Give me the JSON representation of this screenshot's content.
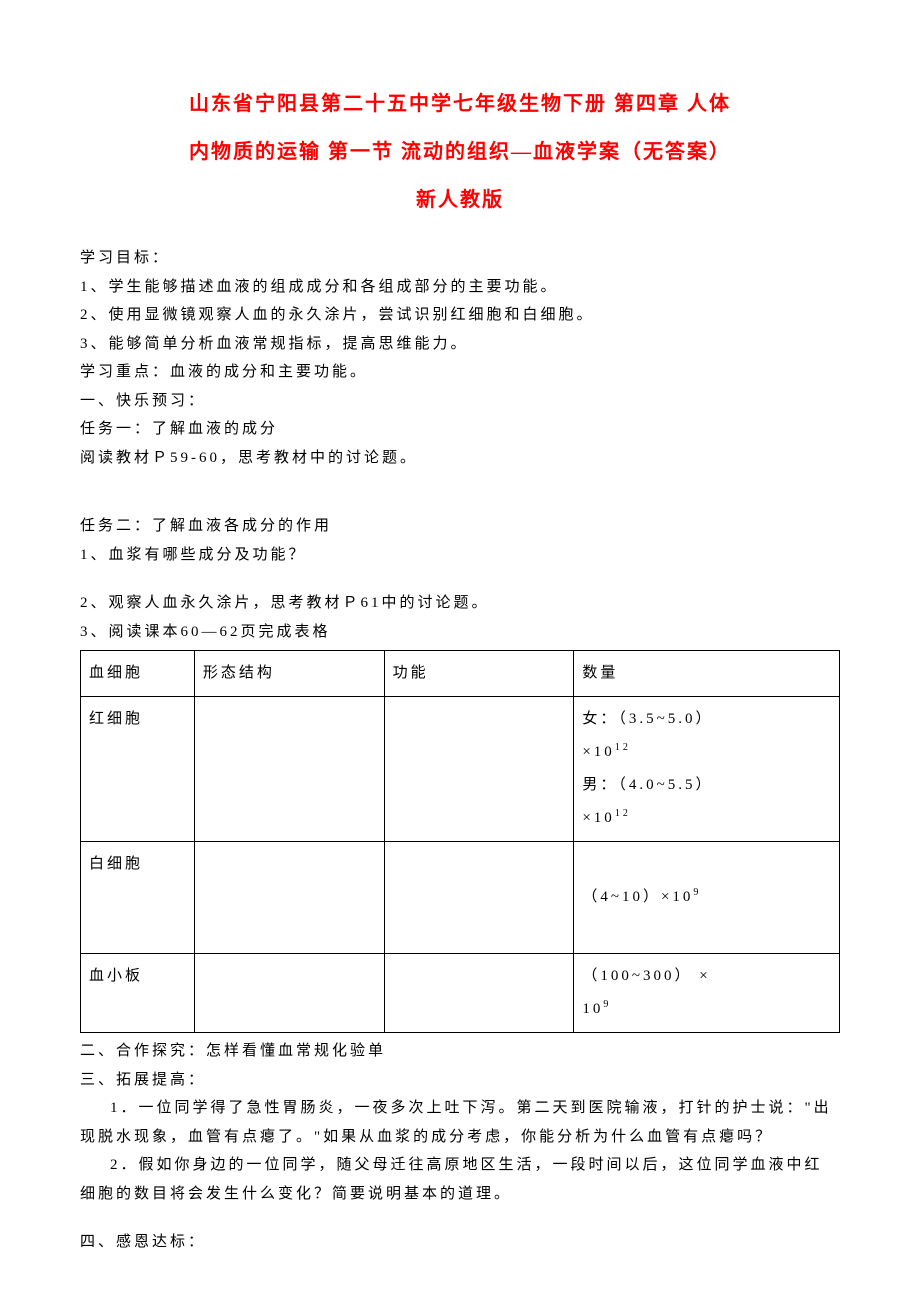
{
  "title": {
    "line1": "山东省宁阳县第二十五中学七年级生物下册 第四章 人体",
    "line2": "内物质的运输 第一节 流动的组织—血液学案（无答案）",
    "line3": "新人教版"
  },
  "section_objectives_label": "学习目标：",
  "objectives": [
    "1、学生能够描述血液的组成成分和各组成部分的主要功能。",
    "2、使用显微镜观察人血的永久涂片，尝试识别红细胞和白细胞。",
    "3、能够简单分析血液常规指标，提高思维能力。"
  ],
  "focus_label": "学习重点：",
  "focus_text": "血液的成分和主要功能。",
  "section1": "一、快乐预习：",
  "task1_label": "任务一：",
  "task1_text": "了解血液的成分",
  "task1_detail": "阅读教材Ｐ59-60，思考教材中的讨论题。",
  "task2_label": "任务二：",
  "task2_text": "了解血液各成分的作用",
  "task2_q1": "1、血浆有哪些成分及功能？",
  "task2_q2": "2、观察人血永久涂片，思考教材Ｐ61中的讨论题。",
  "task2_q3": "3、阅读课本60—62页完成表格",
  "table": {
    "headers": [
      "血细胞",
      "形态结构",
      "功能",
      "数量"
    ],
    "rows": [
      {
        "cell_type": "红细胞",
        "morphology": "",
        "function": "",
        "quantity_parts": [
          "女：（3.5~5.0）",
          "×10",
          "12",
          "男：（4.0~5.5）",
          "×10",
          "12"
        ]
      },
      {
        "cell_type": "白细胞",
        "morphology": "",
        "function": "",
        "quantity_parts": [
          "（4~10）×10",
          "9"
        ]
      },
      {
        "cell_type": "血小板",
        "morphology": "",
        "function": "",
        "quantity_parts": [
          "（100~300） ×",
          "10",
          "9"
        ]
      }
    ]
  },
  "section2": "二、合作探究：怎样看懂血常规化验单",
  "section3": "三、拓展提高：",
  "extend_q1": "1．一位同学得了急性胃肠炎，一夜多次上吐下泻。第二天到医院输液，打针的护士说：\"出现脱水现象，血管有点瘪了。\"如果从血浆的成分考虑，你能分析为什么血管有点瘪吗？",
  "extend_q2": "2．假如你身边的一位同学，随父母迁往高原地区生活，一段时间以后，这位同学血液中红细胞的数目将会发生什么变化？简要说明基本的道理。",
  "section4": "四、感恩达标："
}
